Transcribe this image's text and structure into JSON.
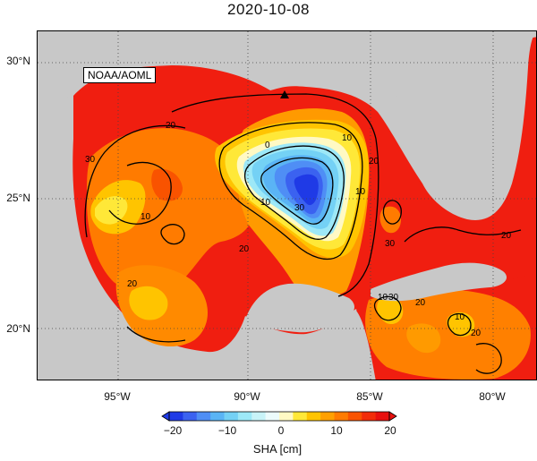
{
  "title": "2020-10-08",
  "credit": "NOAA/AOML",
  "map": {
    "lat_labels": [
      "30°N",
      "25°N",
      "20°N"
    ],
    "lon_labels": [
      "95°W",
      "90°W",
      "85°W",
      "80°W"
    ],
    "contour_labels": [
      "20",
      "30",
      "10",
      "0",
      "10",
      "20",
      "30",
      "10",
      "30",
      "20",
      "10",
      "20",
      "30",
      "20",
      "10",
      "20",
      "10",
      "20"
    ],
    "marker": "triangle-marker",
    "colors": {
      "land": "#c8c8c8",
      "ocean_high": "#f01e10"
    }
  },
  "colorbar": {
    "ticks": [
      "−20",
      "−10",
      "0",
      "10",
      "20"
    ],
    "range": [
      -20,
      20
    ],
    "label": "SHA [cm]",
    "colors": [
      "#1f3ae6",
      "#3b62f0",
      "#4f8ef5",
      "#5ab4f5",
      "#74d1f5",
      "#9de8f7",
      "#c8f3f8",
      "#ecfbfc",
      "#fff9c4",
      "#ffe838",
      "#ffc400",
      "#ffa000",
      "#ff7b00",
      "#f95300",
      "#f22d09",
      "#e8100e"
    ]
  }
}
